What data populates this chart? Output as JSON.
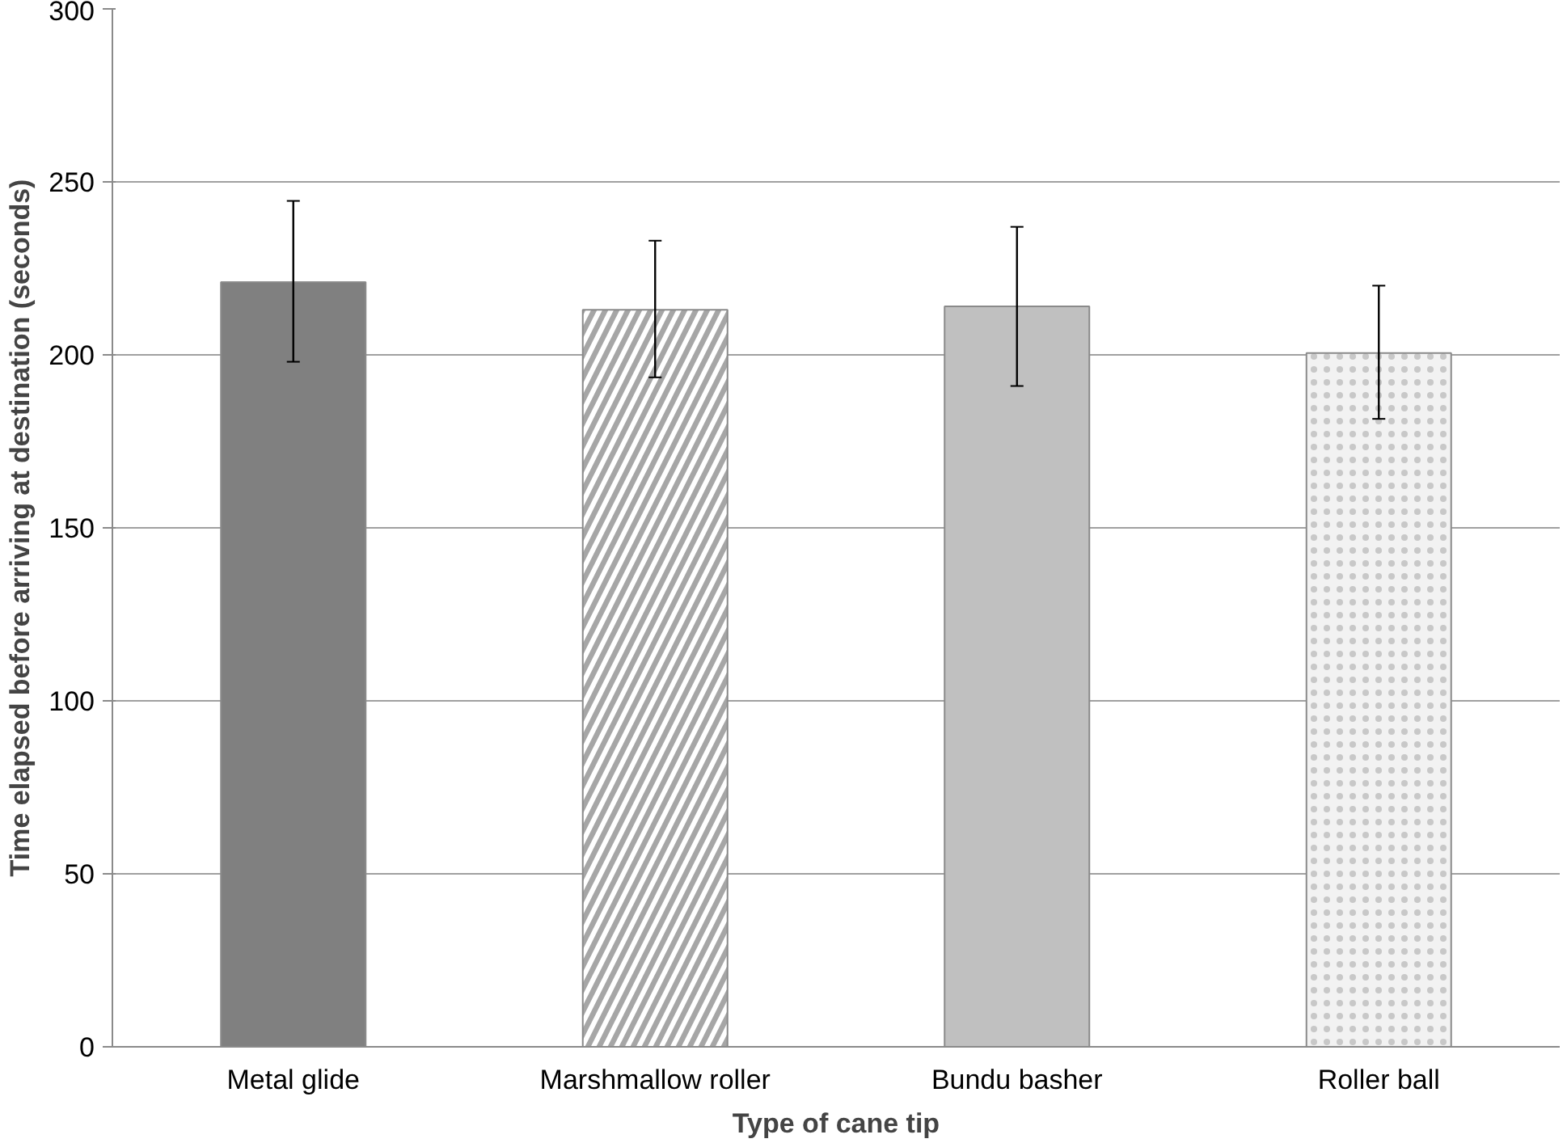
{
  "chart_data": {
    "type": "bar",
    "xlabel": "Type of cane tip",
    "ylabel": "Time elapsed before arriving at destination (seconds)",
    "categories": [
      "Metal glide",
      "Marshmallow roller",
      "Bundu basher",
      "Roller ball"
    ],
    "values": [
      221,
      213,
      214,
      200.5
    ],
    "errors": [
      [
        198,
        244.5
      ],
      [
        193.5,
        233
      ],
      [
        191,
        237
      ],
      [
        181.5,
        220
      ]
    ],
    "colors": [
      "#808080",
      "#a6a6a6",
      "#c0c0c0",
      "#f2f2f2"
    ],
    "ylim": [
      0,
      300
    ],
    "yticks": [
      0,
      50,
      100,
      150,
      200,
      250,
      300
    ],
    "grid": "y"
  }
}
